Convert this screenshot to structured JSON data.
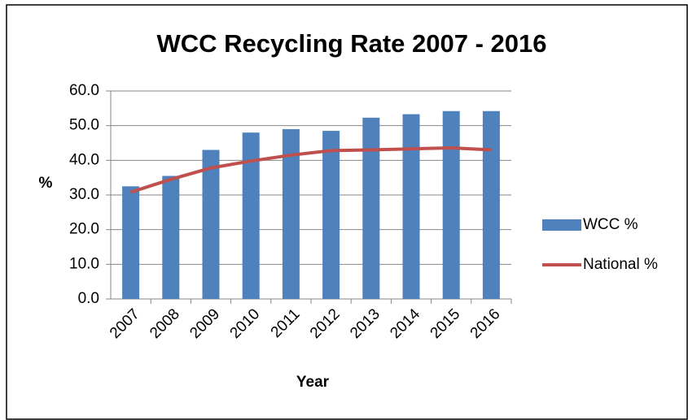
{
  "chart_data": {
    "type": "bar",
    "title": "WCC Recycling Rate 2007 - 2016",
    "x_label": "Year",
    "y_label": "%",
    "categories": [
      "2007",
      "2008",
      "2009",
      "2010",
      "2011",
      "2012",
      "2013",
      "2014",
      "2015",
      "2016"
    ],
    "series": [
      {
        "name": "WCC %",
        "type": "bar",
        "color": "#4f81bd",
        "values": [
          32.5,
          35.5,
          43.0,
          48.0,
          49.0,
          48.5,
          52.3,
          53.3,
          54.2,
          54.2
        ]
      },
      {
        "name": "National %",
        "type": "line",
        "color": "#c0504d",
        "values": [
          30.8,
          34.5,
          37.8,
          39.8,
          41.5,
          42.8,
          43.0,
          43.3,
          43.6,
          43.0
        ]
      }
    ],
    "ylim": [
      0,
      60
    ],
    "yticks": [
      {
        "value": 0,
        "label": "0.0"
      },
      {
        "value": 10,
        "label": "10.0"
      },
      {
        "value": 20,
        "label": "20.0"
      },
      {
        "value": 30,
        "label": "30.0"
      },
      {
        "value": 40,
        "label": "40.0"
      },
      {
        "value": 50,
        "label": "50.0"
      },
      {
        "value": 60,
        "label": "60.0"
      }
    ],
    "grid": true,
    "legend": "right"
  }
}
